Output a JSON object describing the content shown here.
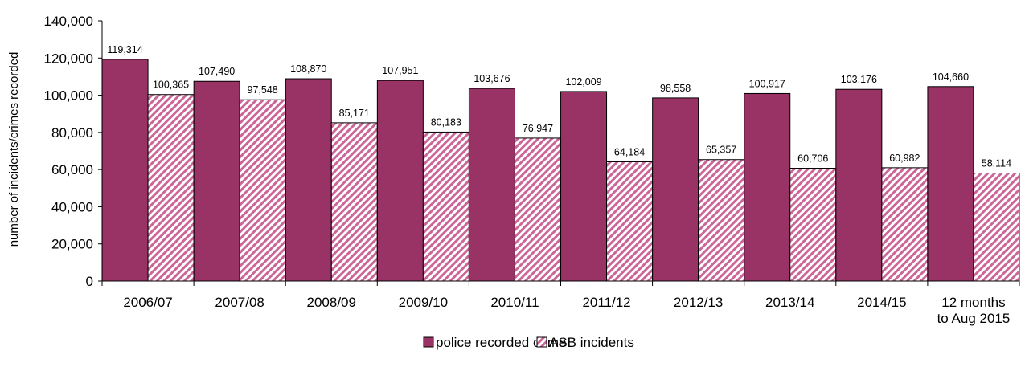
{
  "chart_data": {
    "type": "bar",
    "title": "",
    "xlabel": "",
    "ylabel": "number of incidents/crimes recorded",
    "ylim": [
      0,
      140000
    ],
    "yticks": [
      "0",
      "20,000",
      "40,000",
      "60,000",
      "80,000",
      "100,000",
      "120,000",
      "140,000"
    ],
    "ytick_values": [
      0,
      20000,
      40000,
      60000,
      80000,
      100000,
      120000,
      140000
    ],
    "grid": false,
    "legend_position": "bottom-center",
    "categories": [
      [
        "2006/07"
      ],
      [
        "2007/08"
      ],
      [
        "2008/09"
      ],
      [
        "2009/10"
      ],
      [
        "2010/11"
      ],
      [
        "2011/12"
      ],
      [
        "2012/13"
      ],
      [
        "2013/14"
      ],
      [
        "2014/15"
      ],
      [
        "12 months",
        "to Aug 2015"
      ]
    ],
    "series": [
      {
        "name": "police recorded crime",
        "color": "#993366",
        "pattern": "solid",
        "values": [
          119314,
          107490,
          108870,
          107951,
          103676,
          102009,
          98558,
          100917,
          103176,
          104660
        ],
        "labels": [
          "119,314",
          "107,490",
          "108,870",
          "107,951",
          "103,676",
          "102,009",
          "98,558",
          "100,917",
          "103,176",
          "104,660"
        ]
      },
      {
        "name": "ASB incidents",
        "color": "#cc6699",
        "pattern": "diagonal-hatch",
        "values": [
          100365,
          97548,
          85171,
          80183,
          76947,
          64184,
          65357,
          60706,
          60982,
          58114
        ],
        "labels": [
          "100,365",
          "97,548",
          "85,171",
          "80,183",
          "76,947",
          "64,184",
          "65,357",
          "60,706",
          "60,982",
          "58,114"
        ]
      }
    ]
  }
}
